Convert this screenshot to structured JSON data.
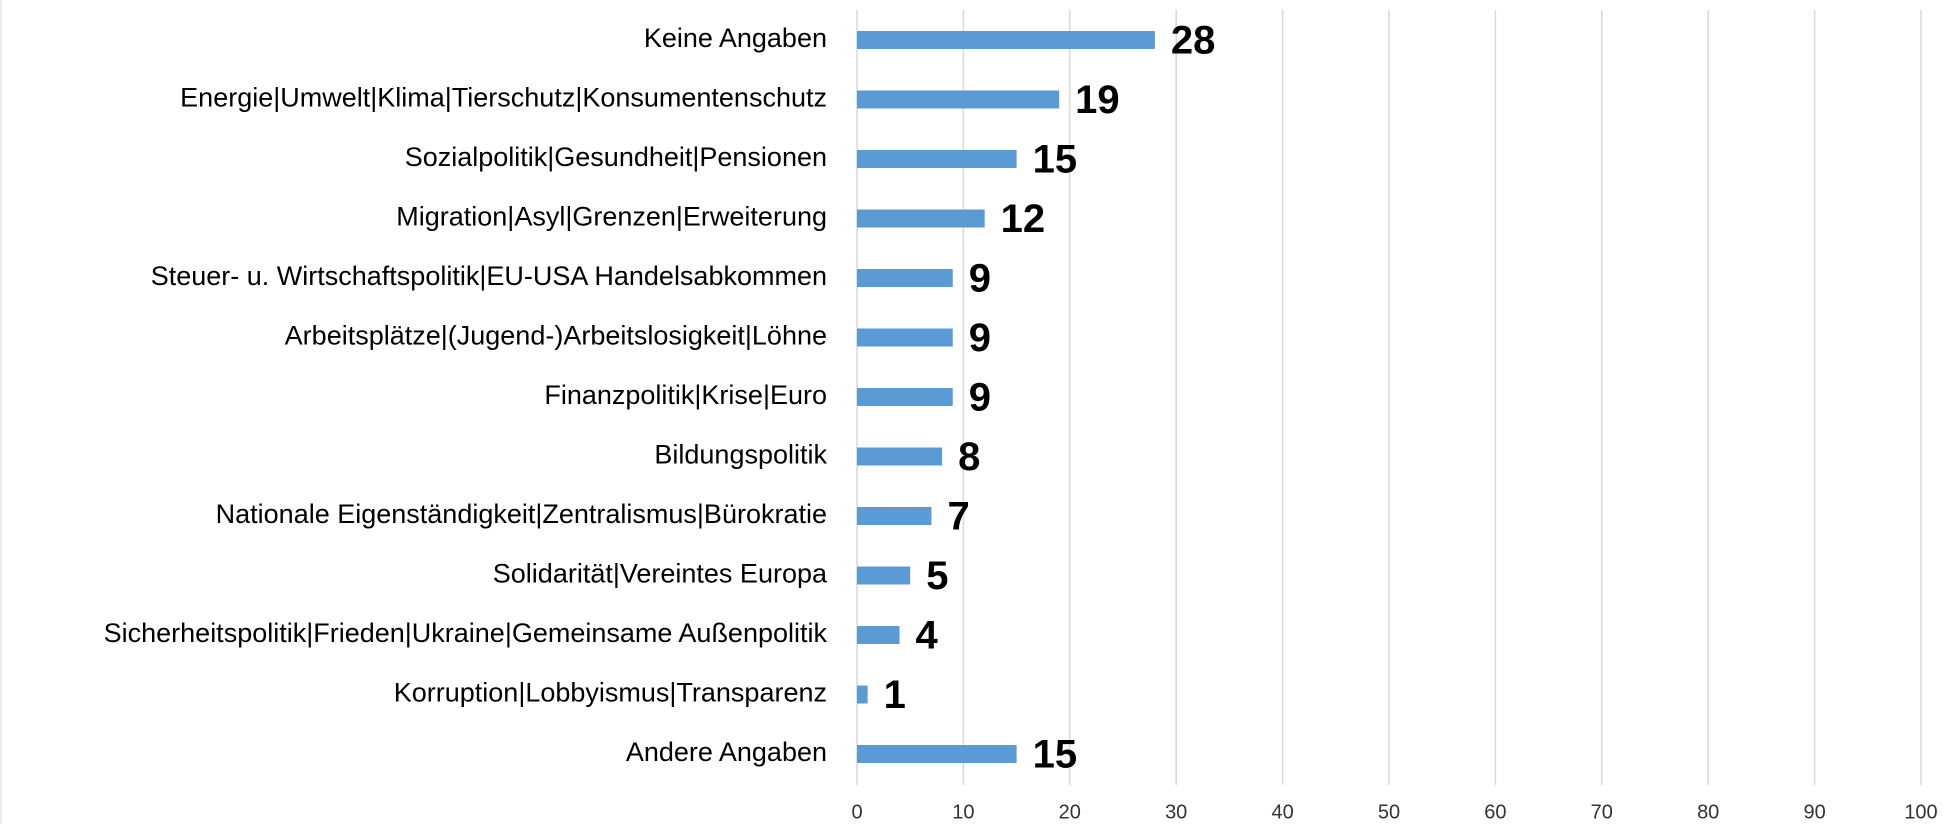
{
  "chart_data": {
    "type": "bar",
    "orientation": "horizontal",
    "categories": [
      "Keine Angaben",
      "Energie|Umwelt|Klima|Tierschutz|Konsumentenschutz",
      "Sozialpolitik|Gesundheit|Pensionen",
      "Migration|Asyl|Grenzen|Erweiterung",
      "Steuer- u. Wirtschaftspolitik|EU-USA Handelsabkommen",
      "Arbeitsplätze|(Jugend-)Arbeitslosigkeit|Löhne",
      "Finanzpolitik|Krise|Euro",
      "Bildungspolitik",
      "Nationale Eigenständigkeit|Zentralismus|Bürokratie",
      "Solidarität|Vereintes Europa",
      "Sicherheitspolitik|Frieden|Ukraine|Gemeinsame Außenpolitik",
      "Korruption|Lobbyismus|Transparenz",
      "Andere Angaben"
    ],
    "values": [
      28,
      19,
      15,
      12,
      9,
      9,
      9,
      8,
      7,
      5,
      4,
      1,
      15
    ],
    "color": "#5b9bd5",
    "xlim": [
      0,
      100
    ],
    "xticks": [
      0,
      10,
      20,
      30,
      40,
      50,
      60,
      70,
      80,
      90,
      100
    ],
    "grid": true
  }
}
